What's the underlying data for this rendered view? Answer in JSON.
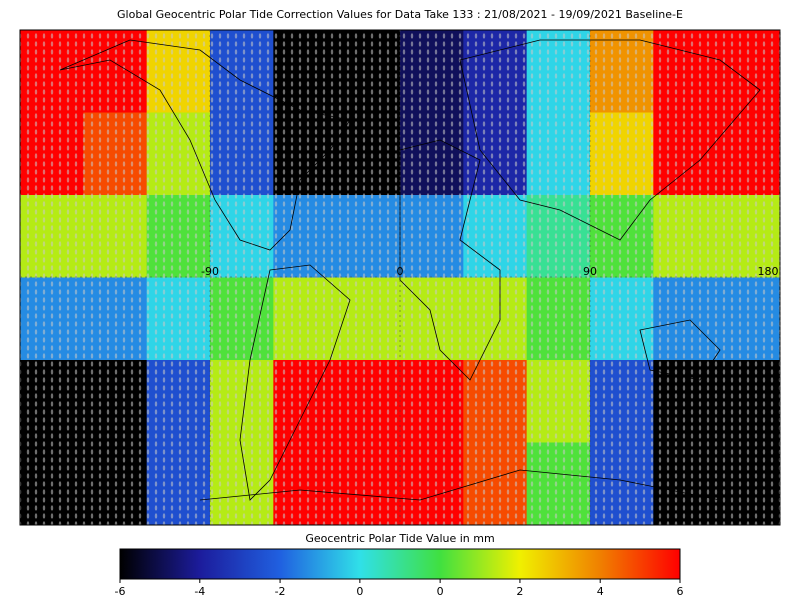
{
  "chart_data": {
    "type": "heatmap",
    "title": "Global Geocentric Polar Tide Correction Values for Data Take 133 : 21/08/2021 - 19/09/2021 Baseline-E",
    "colorbar_label": "Geocentric Polar Tide Value in mm",
    "xlim": [
      -180,
      180
    ],
    "xticks": [
      -90,
      0,
      90,
      180
    ],
    "clim": [
      -6,
      6
    ],
    "cticks": [
      -6,
      {
        "value": -4.29,
        "label": "-4"
      },
      {
        "value": -2.57,
        "label": "-2"
      },
      {
        "value": -0.86,
        "label": "0"
      },
      {
        "value": 0.86,
        "label": "0"
      },
      {
        "value": 2.57,
        "label": "2"
      },
      {
        "value": 4.29,
        "label": "4"
      },
      6
    ],
    "colormap": [
      "#000000",
      "#1c1c9c",
      "#2060e0",
      "#30e0e8",
      "#40e040",
      "#f0f000",
      "#f08000",
      "#ff0000"
    ],
    "values": [
      [
        6,
        6,
        3,
        -3,
        -6,
        -6,
        -5,
        -4,
        -1,
        4,
        6,
        6
      ],
      [
        6,
        5,
        2,
        -3,
        -6,
        -6,
        -5,
        -4,
        -1,
        3,
        6,
        6
      ],
      [
        2,
        2,
        1,
        -1,
        -2,
        -2,
        -2,
        -1,
        0,
        1,
        2,
        2
      ],
      [
        -2,
        -2,
        -1,
        1,
        2,
        2,
        2,
        2,
        1,
        -1,
        -2,
        -2
      ],
      [
        -6,
        -6,
        -3,
        2,
        6,
        6,
        6,
        5,
        2,
        -3,
        -6,
        -6
      ],
      [
        -6,
        -6,
        -3,
        2,
        6,
        6,
        6,
        5,
        1,
        -3,
        -6,
        -6
      ]
    ]
  }
}
